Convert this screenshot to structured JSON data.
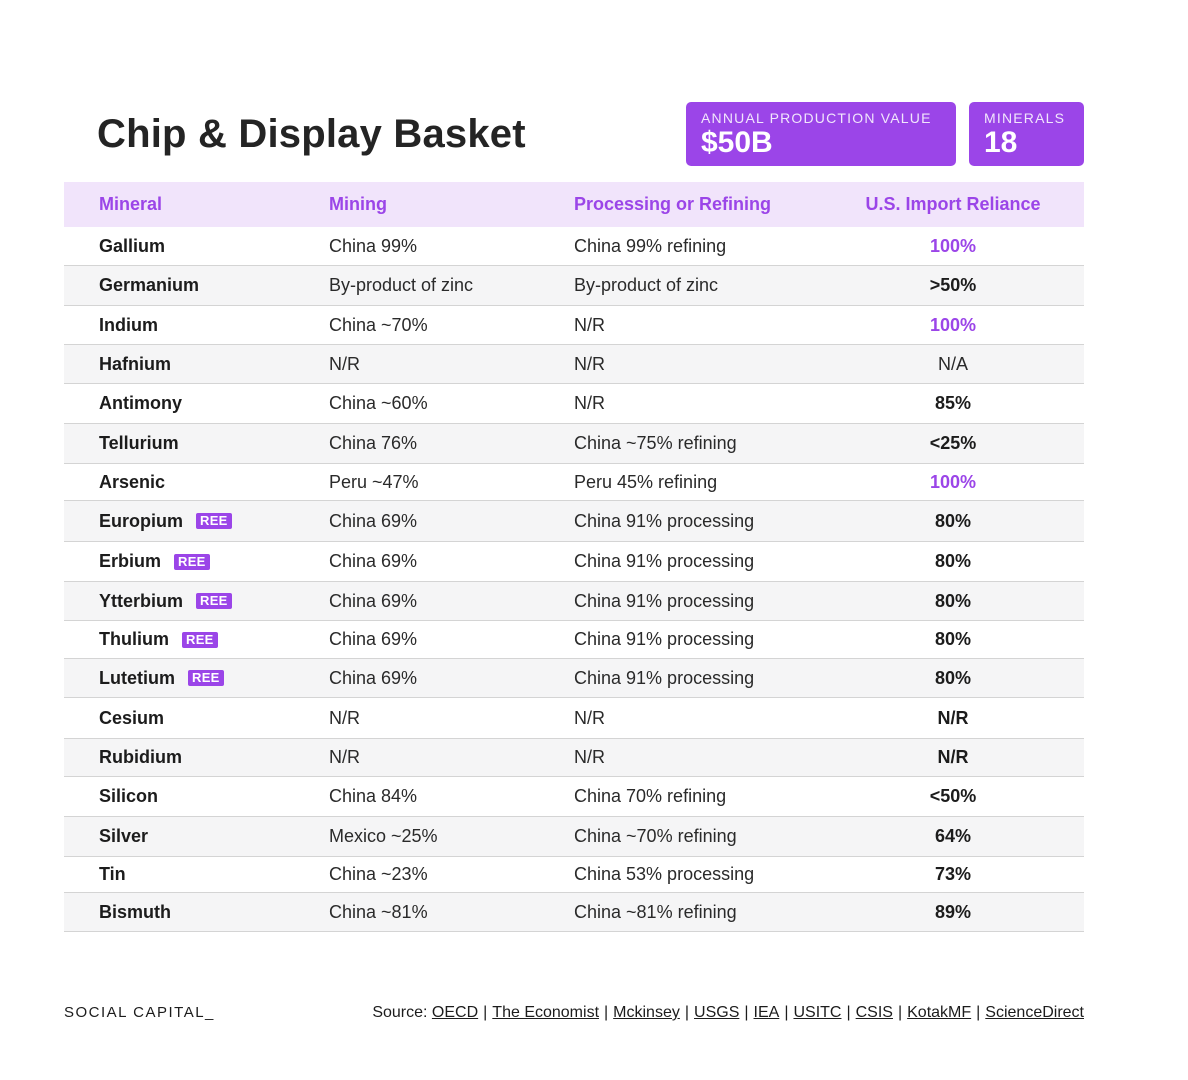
{
  "title": "Chip & Display Basket",
  "stats": {
    "production_label": "ANNUAL PRODUCTION VALUE",
    "production_value": "$50B",
    "minerals_label": "MINERALS",
    "minerals_value": "18"
  },
  "colors": {
    "accent": "#9b45e8",
    "header_bg": "#f1e4fb",
    "alt_row": "#f5f5f6"
  },
  "table": {
    "headers": [
      "Mineral",
      "Mining",
      "Processing or Refining",
      "U.S. Import Reliance"
    ],
    "rows": [
      {
        "mineral": "Gallium",
        "ree": "",
        "mining": "China 99%",
        "processing": "China 99% refining",
        "reliance": "100%",
        "style": "purple"
      },
      {
        "mineral": "Germanium",
        "ree": "",
        "mining": "By-product of zinc",
        "processing": "By-product of zinc",
        "reliance": ">50%",
        "style": "bold"
      },
      {
        "mineral": "Indium",
        "ree": "",
        "mining": "China ~70%",
        "processing": "N/R",
        "reliance": "100%",
        "style": "purple"
      },
      {
        "mineral": "Hafnium",
        "ree": "",
        "mining": "N/R",
        "processing": "N/R",
        "reliance": "N/A",
        "style": "normal"
      },
      {
        "mineral": "Antimony",
        "ree": "",
        "mining": "China ~60%",
        "processing": "N/R",
        "reliance": "85%",
        "style": "bold"
      },
      {
        "mineral": "Tellurium",
        "ree": "",
        "mining": "China 76%",
        "processing": "China ~75% refining",
        "reliance": "<25%",
        "style": "bold"
      },
      {
        "mineral": "Arsenic",
        "ree": "",
        "mining": "Peru ~47%",
        "processing": "Peru 45% refining",
        "reliance": "100%",
        "style": "purple"
      },
      {
        "mineral": "Europium",
        "ree": "REE",
        "mining": "China 69%",
        "processing": "China 91% processing",
        "reliance": "80%",
        "style": "bold"
      },
      {
        "mineral": "Erbium",
        "ree": "REE",
        "mining": "China 69%",
        "processing": "China 91% processing",
        "reliance": "80%",
        "style": "bold"
      },
      {
        "mineral": "Ytterbium",
        "ree": "REE",
        "mining": "China 69%",
        "processing": "China 91% processing",
        "reliance": "80%",
        "style": "bold"
      },
      {
        "mineral": "Thulium",
        "ree": "REE",
        "mining": "China 69%",
        "processing": "China 91% processing",
        "reliance": "80%",
        "style": "bold"
      },
      {
        "mineral": "Lutetium",
        "ree": "REE",
        "mining": "China 69%",
        "processing": "China 91% processing",
        "reliance": "80%",
        "style": "bold"
      },
      {
        "mineral": "Cesium",
        "ree": "",
        "mining": "N/R",
        "processing": "N/R",
        "reliance": "N/R",
        "style": "bold"
      },
      {
        "mineral": "Rubidium",
        "ree": "",
        "mining": "N/R",
        "processing": "N/R",
        "reliance": "N/R",
        "style": "bold"
      },
      {
        "mineral": "Silicon",
        "ree": "",
        "mining": "China 84%",
        "processing": "China 70% refining",
        "reliance": "<50%",
        "style": "bold"
      },
      {
        "mineral": "Silver",
        "ree": "",
        "mining": "Mexico ~25%",
        "processing": "China ~70% refining",
        "reliance": "64%",
        "style": "bold"
      },
      {
        "mineral": "Tin",
        "ree": "",
        "mining": "China ~23%",
        "processing": "China 53% processing",
        "reliance": "73%",
        "style": "bold"
      },
      {
        "mineral": "Bismuth",
        "ree": "",
        "mining": "China ~81%",
        "processing": "China ~81% refining",
        "reliance": "89%",
        "style": "bold"
      }
    ]
  },
  "footer": {
    "brand": "SOCIAL CAPITAL_",
    "source_label": "Source:",
    "sources": [
      "OECD",
      "The Economist",
      "Mckinsey",
      "USGS",
      "IEA",
      "USITC",
      "CSIS",
      "KotakMF",
      "ScienceDirect"
    ]
  }
}
